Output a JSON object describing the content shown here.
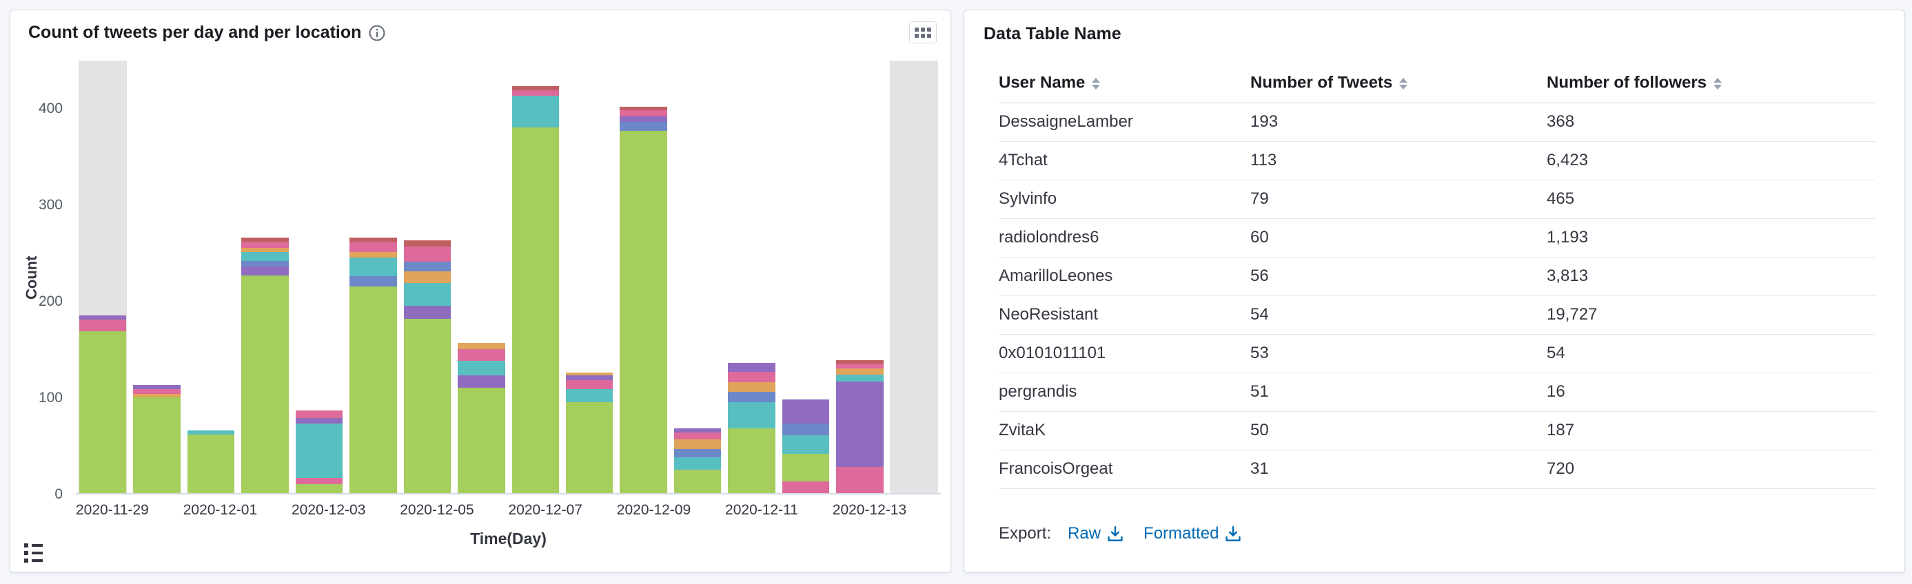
{
  "left_panel": {
    "title": "Count of tweets per day and per location"
  },
  "chart_data": {
    "type": "bar",
    "stacked": true,
    "title": "Count of tweets per day and per location",
    "xlabel": "Time(Day)",
    "ylabel": "Count",
    "ylim": [
      0,
      450
    ],
    "yticks": [
      0,
      100,
      200,
      300,
      400
    ],
    "grid": false,
    "legend": "collapsed",
    "x_tick_labels": [
      "2020-11-29",
      "2020-12-01",
      "2020-12-03",
      "2020-12-05",
      "2020-12-07",
      "2020-12-09",
      "2020-12-11",
      "2020-12-13"
    ],
    "palette": {
      "green": "#a6ce5c",
      "teal": "#58bfc1",
      "purple": "#8f6cc0",
      "pink": "#dd6a9a",
      "orange": "#e0a45a",
      "blue": "#6d88c9",
      "red": "#c05f62"
    },
    "bars": [
      {
        "label": "2020-11-29",
        "backdrop": true,
        "total": 184,
        "segments": [
          {
            "c": "green",
            "v": 168
          },
          {
            "c": "pink",
            "v": 12
          },
          {
            "c": "purple",
            "v": 4
          }
        ]
      },
      {
        "label": "",
        "backdrop": false,
        "total": 112,
        "segments": [
          {
            "c": "green",
            "v": 99
          },
          {
            "c": "orange",
            "v": 4
          },
          {
            "c": "pink",
            "v": 5
          },
          {
            "c": "purple",
            "v": 4
          }
        ]
      },
      {
        "label": "2020-12-01",
        "backdrop": false,
        "total": 65,
        "segments": [
          {
            "c": "green",
            "v": 61
          },
          {
            "c": "teal",
            "v": 4
          }
        ]
      },
      {
        "label": "",
        "backdrop": false,
        "total": 265,
        "segments": [
          {
            "c": "green",
            "v": 226
          },
          {
            "c": "purple",
            "v": 9
          },
          {
            "c": "blue",
            "v": 6
          },
          {
            "c": "teal",
            "v": 9
          },
          {
            "c": "orange",
            "v": 4
          },
          {
            "c": "pink",
            "v": 7
          },
          {
            "c": "red",
            "v": 4
          }
        ]
      },
      {
        "label": "2020-12-03",
        "backdrop": false,
        "total": 86,
        "segments": [
          {
            "c": "green",
            "v": 9
          },
          {
            "c": "pink",
            "v": 7
          },
          {
            "c": "teal",
            "v": 56
          },
          {
            "c": "purple",
            "v": 6
          },
          {
            "c": "pink",
            "v": 8
          }
        ]
      },
      {
        "label": "",
        "backdrop": false,
        "total": 265,
        "segments": [
          {
            "c": "green",
            "v": 214
          },
          {
            "c": "blue",
            "v": 11
          },
          {
            "c": "teal",
            "v": 19
          },
          {
            "c": "orange",
            "v": 6
          },
          {
            "c": "pink",
            "v": 11
          },
          {
            "c": "red",
            "v": 4
          }
        ]
      },
      {
        "label": "2020-12-05",
        "backdrop": false,
        "total": 262,
        "segments": [
          {
            "c": "green",
            "v": 181
          },
          {
            "c": "purple",
            "v": 13
          },
          {
            "c": "teal",
            "v": 24
          },
          {
            "c": "orange",
            "v": 12
          },
          {
            "c": "blue",
            "v": 10
          },
          {
            "c": "pink",
            "v": 16
          },
          {
            "c": "red",
            "v": 6
          }
        ]
      },
      {
        "label": "",
        "backdrop": false,
        "total": 156,
        "segments": [
          {
            "c": "green",
            "v": 109
          },
          {
            "c": "purple",
            "v": 13
          },
          {
            "c": "teal",
            "v": 15
          },
          {
            "c": "pink",
            "v": 12
          },
          {
            "c": "orange",
            "v": 7
          }
        ]
      },
      {
        "label": "2020-12-07",
        "backdrop": false,
        "total": 422,
        "segments": [
          {
            "c": "green",
            "v": 379
          },
          {
            "c": "teal",
            "v": 33
          },
          {
            "c": "pink",
            "v": 6
          },
          {
            "c": "red",
            "v": 4
          }
        ]
      },
      {
        "label": "",
        "backdrop": false,
        "total": 125,
        "segments": [
          {
            "c": "green",
            "v": 94
          },
          {
            "c": "teal",
            "v": 14
          },
          {
            "c": "pink",
            "v": 9
          },
          {
            "c": "purple",
            "v": 5
          },
          {
            "c": "orange",
            "v": 3
          }
        ]
      },
      {
        "label": "2020-12-09",
        "backdrop": false,
        "total": 401,
        "segments": [
          {
            "c": "green",
            "v": 376
          },
          {
            "c": "blue",
            "v": 9
          },
          {
            "c": "purple",
            "v": 6
          },
          {
            "c": "pink",
            "v": 6
          },
          {
            "c": "red",
            "v": 4
          }
        ]
      },
      {
        "label": "",
        "backdrop": false,
        "total": 67,
        "segments": [
          {
            "c": "green",
            "v": 24
          },
          {
            "c": "teal",
            "v": 13
          },
          {
            "c": "blue",
            "v": 9
          },
          {
            "c": "orange",
            "v": 10
          },
          {
            "c": "pink",
            "v": 7
          },
          {
            "c": "purple",
            "v": 4
          }
        ]
      },
      {
        "label": "2020-12-11",
        "backdrop": false,
        "total": 135,
        "segments": [
          {
            "c": "green",
            "v": 67
          },
          {
            "c": "teal",
            "v": 27
          },
          {
            "c": "blue",
            "v": 11
          },
          {
            "c": "orange",
            "v": 10
          },
          {
            "c": "pink",
            "v": 11
          },
          {
            "c": "purple",
            "v": 9
          }
        ]
      },
      {
        "label": "",
        "backdrop": false,
        "total": 97,
        "segments": [
          {
            "c": "pink",
            "v": 12
          },
          {
            "c": "green",
            "v": 29
          },
          {
            "c": "teal",
            "v": 19
          },
          {
            "c": "blue",
            "v": 12
          },
          {
            "c": "purple",
            "v": 25
          }
        ]
      },
      {
        "label": "2020-12-13",
        "backdrop": false,
        "total": 138,
        "segments": [
          {
            "c": "pink",
            "v": 27
          },
          {
            "c": "purple",
            "v": 89
          },
          {
            "c": "teal",
            "v": 7
          },
          {
            "c": "orange",
            "v": 6
          },
          {
            "c": "pink",
            "v": 5
          },
          {
            "c": "red",
            "v": 4
          }
        ]
      },
      {
        "label": "",
        "backdrop": true,
        "total": 0,
        "segments": []
      }
    ]
  },
  "right_panel": {
    "title": "Data Table Name",
    "table": {
      "columns": [
        "User Name",
        "Number of Tweets",
        "Number of followers"
      ],
      "rows": [
        [
          "DessaigneLamber",
          "193",
          "368"
        ],
        [
          "4Tchat",
          "113",
          "6,423"
        ],
        [
          "Sylvinfo",
          "79",
          "465"
        ],
        [
          "radiolondres6",
          "60",
          "1,193"
        ],
        [
          "AmarilloLeones",
          "56",
          "3,813"
        ],
        [
          "NeoResistant",
          "54",
          "19,727"
        ],
        [
          "0x0101011101",
          "53",
          "54"
        ],
        [
          "pergrandis",
          "51",
          "16"
        ],
        [
          "ZvitaK",
          "50",
          "187"
        ],
        [
          "FrancoisOrgeat",
          "31",
          "720"
        ]
      ]
    },
    "export": {
      "label": "Export:",
      "links": [
        {
          "label": "Raw"
        },
        {
          "label": "Formatted"
        }
      ]
    }
  },
  "colors": {
    "page_background": "#f5f7fa",
    "panel_border": "#d3dae6",
    "link_blue": "#006bb4",
    "backdrop_gray": "#e3e3e3"
  }
}
